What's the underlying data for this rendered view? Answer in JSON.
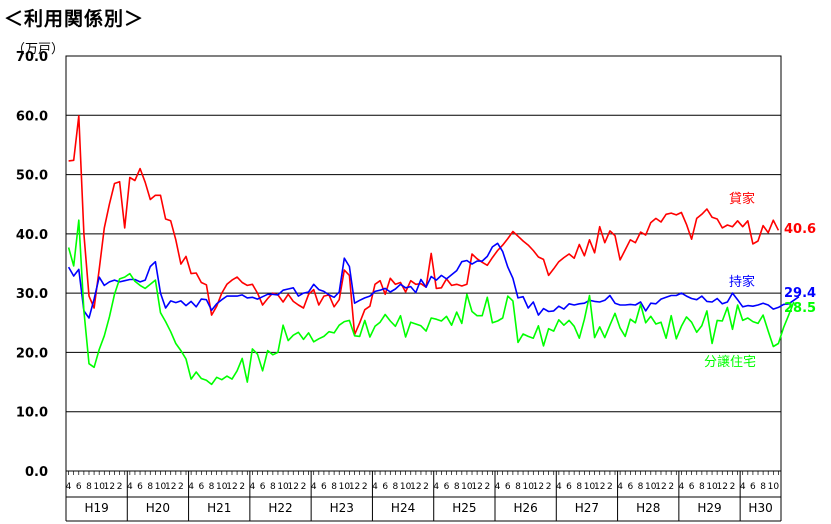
{
  "title": "＜利用関係別＞",
  "chart_data": {
    "type": "line",
    "ylabel": "（万戸）",
    "ylim": [
      0,
      70
    ],
    "yticks": [
      "0.0",
      "10.0",
      "20.0",
      "30.0",
      "40.0",
      "50.0",
      "60.0",
      "70.0"
    ],
    "grid": true,
    "month_ticks": [
      "4",
      "6",
      "8",
      "10",
      "12",
      "2"
    ],
    "years": [
      "H19",
      "H20",
      "H21",
      "H22",
      "H23",
      "H24",
      "H25",
      "H26",
      "H27",
      "H28",
      "H29",
      "H30"
    ],
    "series": [
      {
        "name": "貸家",
        "color": "#ff0000",
        "end_label": "40.6",
        "values": [
          52.3,
          52.4,
          59.9,
          40.0,
          29.5,
          27.5,
          34.0,
          41.0,
          45.0,
          48.5,
          48.8,
          41.0,
          49.5,
          49.0,
          51.0,
          48.7,
          45.8,
          46.5,
          46.5,
          42.5,
          42.2,
          39.0,
          34.9,
          36.2,
          33.3,
          33.4,
          31.8,
          31.4,
          26.3,
          27.8,
          30.0,
          31.5,
          32.2,
          32.7,
          31.8,
          31.3,
          31.5,
          30.0,
          28.0,
          29.1,
          30.0,
          29.7,
          28.5,
          29.8,
          28.6,
          28.0,
          27.5,
          29.8,
          30.6,
          28.0,
          29.5,
          29.7,
          27.7,
          28.9,
          33.9,
          33.0,
          23.0,
          25.0,
          27.2,
          27.8,
          31.5,
          32.1,
          29.8,
          32.5,
          31.5,
          31.8,
          30.2,
          32.1,
          31.5,
          31.6,
          31.0,
          36.7,
          30.8,
          30.9,
          32.4,
          31.3,
          31.5,
          31.2,
          31.5,
          36.6,
          35.8,
          35.2,
          34.7,
          36.0,
          37.2,
          38.1,
          39.2,
          40.4,
          39.6,
          38.8,
          38.1,
          37.2,
          36.1,
          35.7,
          33.0,
          34.1,
          35.3,
          36.0,
          36.6,
          35.9,
          38.2,
          36.3,
          39.0,
          36.8,
          41.2,
          38.5,
          40.5,
          39.7,
          35.6,
          37.3,
          39.0,
          38.5,
          40.3,
          39.8,
          41.9,
          42.6,
          42.0,
          43.3,
          43.5,
          43.2,
          43.6,
          41.6,
          39.1,
          42.6,
          43.3,
          44.2,
          42.8,
          42.5,
          41.0,
          41.5,
          41.2,
          42.2,
          41.2,
          42.2,
          38.3,
          38.8,
          41.4,
          40.2,
          42.3,
          40.6
        ]
      },
      {
        "name": "持家",
        "color": "#0000ff",
        "end_label": "29.4",
        "values": [
          34.4,
          32.9,
          34.0,
          27.0,
          25.8,
          29.0,
          32.7,
          31.3,
          31.9,
          32.2,
          31.9,
          32.1,
          32.3,
          32.3,
          31.9,
          32.2,
          34.5,
          35.3,
          30.0,
          27.5,
          28.7,
          28.4,
          28.7,
          27.9,
          28.6,
          27.7,
          29.0,
          28.9,
          27.1,
          28.2,
          28.9,
          29.5,
          29.5,
          29.5,
          29.7,
          29.2,
          29.3,
          29.0,
          29.4,
          29.8,
          29.8,
          29.7,
          30.5,
          30.7,
          30.9,
          29.5,
          30.0,
          30.2,
          31.5,
          30.6,
          30.3,
          29.7,
          29.3,
          30.2,
          35.9,
          34.5,
          28.3,
          28.8,
          29.2,
          29.5,
          30.3,
          30.5,
          30.8,
          30.2,
          30.7,
          31.5,
          30.9,
          31.1,
          30.1,
          32.3,
          31.0,
          32.8,
          32.2,
          33.0,
          32.4,
          33.1,
          33.8,
          35.3,
          35.5,
          34.9,
          35.4,
          35.4,
          36.2,
          37.8,
          38.4,
          37.0,
          34.4,
          32.5,
          29.2,
          29.4,
          27.5,
          28.5,
          26.3,
          27.4,
          26.9,
          27.0,
          27.8,
          27.3,
          28.2,
          28.0,
          28.2,
          28.3,
          28.8,
          28.6,
          28.5,
          28.8,
          29.6,
          28.3,
          28.0,
          28.0,
          28.1,
          28.0,
          28.5,
          27.0,
          28.3,
          28.2,
          29.0,
          29.3,
          29.6,
          29.6,
          30.0,
          29.5,
          29.1,
          28.9,
          29.5,
          28.6,
          28.5,
          29.1,
          28.2,
          28.5,
          30.0,
          28.9,
          27.7,
          27.9,
          27.8,
          28.0,
          28.3,
          28.0,
          27.3,
          27.6,
          28.1,
          28.2,
          28.8,
          29.4
        ]
      },
      {
        "name": "分譲住宅",
        "color": "#00ff00",
        "end_label": "28.5",
        "values": [
          37.7,
          34.6,
          42.3,
          27.0,
          18.1,
          17.5,
          20.5,
          22.8,
          26.0,
          29.8,
          32.4,
          32.7,
          33.3,
          32.0,
          31.3,
          30.8,
          31.5,
          32.2,
          26.7,
          25.2,
          23.5,
          21.5,
          20.3,
          18.9,
          15.5,
          16.7,
          15.6,
          15.3,
          14.6,
          15.8,
          15.4,
          16.0,
          15.5,
          16.9,
          19.0,
          15.0,
          20.6,
          19.7,
          16.9,
          20.3,
          19.6,
          20.0,
          24.6,
          22.0,
          22.9,
          23.4,
          22.2,
          23.3,
          21.8,
          22.3,
          22.7,
          23.5,
          23.3,
          24.6,
          25.2,
          25.4,
          22.8,
          22.7,
          25.4,
          22.6,
          24.4,
          25.1,
          26.4,
          25.3,
          24.4,
          26.2,
          22.6,
          25.1,
          24.8,
          24.5,
          23.6,
          25.8,
          25.6,
          25.3,
          26.1,
          24.6,
          26.8,
          24.9,
          29.8,
          26.9,
          26.2,
          26.2,
          29.3,
          25.0,
          25.3,
          25.8,
          29.5,
          28.7,
          21.7,
          23.1,
          22.7,
          22.4,
          24.5,
          21.1,
          24.0,
          23.6,
          25.5,
          24.6,
          25.4,
          24.4,
          22.4,
          25.6,
          29.6,
          22.5,
          24.3,
          22.5,
          24.6,
          26.6,
          24.1,
          22.7,
          25.6,
          25.0,
          28.1,
          25.0,
          26.1,
          24.8,
          25.1,
          22.4,
          26.2,
          22.3,
          24.4,
          26.0,
          25.1,
          23.4,
          24.5,
          27.0,
          21.5,
          25.4,
          25.3,
          27.6,
          23.9,
          28.0,
          25.4,
          25.8,
          25.2,
          24.9,
          26.3,
          23.6,
          21.0,
          21.5,
          24.2,
          26.3,
          28.5
        ]
      }
    ]
  }
}
